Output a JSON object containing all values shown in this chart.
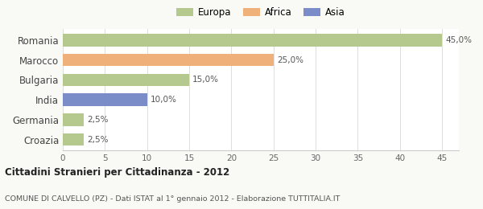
{
  "categories": [
    "Romania",
    "Marocco",
    "Bulgaria",
    "India",
    "Germania",
    "Croazia"
  ],
  "values": [
    45.0,
    25.0,
    15.0,
    10.0,
    2.5,
    2.5
  ],
  "colors": [
    "#b5c98e",
    "#f0b07a",
    "#b5c98e",
    "#7b8dc8",
    "#b5c98e",
    "#b5c98e"
  ],
  "labels": [
    "45,0%",
    "25,0%",
    "15,0%",
    "10,0%",
    "2,5%",
    "2,5%"
  ],
  "legend": [
    {
      "label": "Europa",
      "color": "#b5c98e"
    },
    {
      "label": "Africa",
      "color": "#f0b07a"
    },
    {
      "label": "Asia",
      "color": "#7b8dc8"
    }
  ],
  "xlim": [
    0,
    47
  ],
  "xticks": [
    0,
    5,
    10,
    15,
    20,
    25,
    30,
    35,
    40,
    45
  ],
  "title_bold": "Cittadini Stranieri per Cittadinanza - 2012",
  "subtitle": "COMUNE DI CALVELLO (PZ) - Dati ISTAT al 1° gennaio 2012 - Elaborazione TUTTITALIA.IT",
  "bg_color": "#f9f9f6",
  "plot_bg": "#ffffff",
  "bar_height": 0.62
}
